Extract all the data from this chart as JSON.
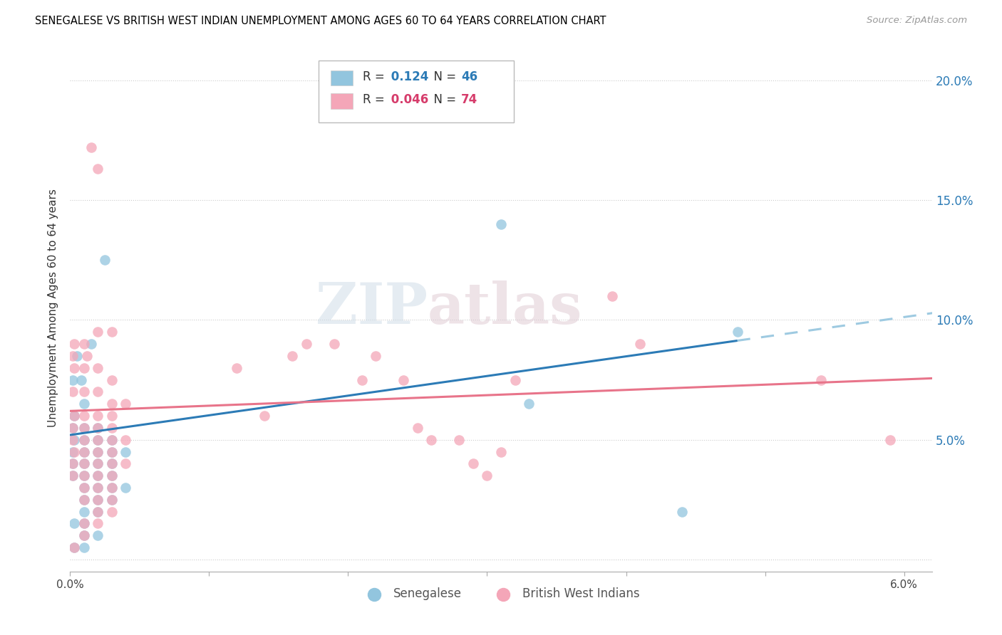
{
  "title": "SENEGALESE VS BRITISH WEST INDIAN UNEMPLOYMENT AMONG AGES 60 TO 64 YEARS CORRELATION CHART",
  "source": "Source: ZipAtlas.com",
  "ylabel": "Unemployment Among Ages 60 to 64 years",
  "legend1_label": "Senegalese",
  "legend2_label": "British West Indians",
  "R1": 0.124,
  "N1": 46,
  "R2": 0.046,
  "N2": 74,
  "color_blue": "#92c5de",
  "color_pink": "#f4a6b8",
  "xlim": [
    0.0,
    0.062
  ],
  "ylim": [
    -0.005,
    0.215
  ],
  "yticks": [
    0.0,
    0.05,
    0.1,
    0.15,
    0.2
  ],
  "ytick_labels": [
    "",
    "5.0%",
    "10.0%",
    "15.0%",
    "20.0%"
  ],
  "xticks": [
    0.0,
    0.01,
    0.02,
    0.03,
    0.04,
    0.05,
    0.06
  ],
  "xtick_labels": [
    "0.0%",
    "",
    "",
    "",
    "",
    "",
    "6.0%"
  ],
  "blue_points": [
    [
      0.0005,
      0.085
    ],
    [
      0.0015,
      0.09
    ],
    [
      0.0025,
      0.125
    ],
    [
      0.0002,
      0.075
    ],
    [
      0.0008,
      0.075
    ],
    [
      0.001,
      0.065
    ],
    [
      0.0003,
      0.06
    ],
    [
      0.0002,
      0.055
    ],
    [
      0.001,
      0.055
    ],
    [
      0.002,
      0.055
    ],
    [
      0.0003,
      0.05
    ],
    [
      0.001,
      0.05
    ],
    [
      0.002,
      0.05
    ],
    [
      0.003,
      0.05
    ],
    [
      0.0002,
      0.045
    ],
    [
      0.001,
      0.045
    ],
    [
      0.002,
      0.045
    ],
    [
      0.003,
      0.045
    ],
    [
      0.004,
      0.045
    ],
    [
      0.0002,
      0.04
    ],
    [
      0.001,
      0.04
    ],
    [
      0.002,
      0.04
    ],
    [
      0.003,
      0.04
    ],
    [
      0.0002,
      0.035
    ],
    [
      0.001,
      0.035
    ],
    [
      0.002,
      0.035
    ],
    [
      0.003,
      0.035
    ],
    [
      0.001,
      0.03
    ],
    [
      0.002,
      0.03
    ],
    [
      0.003,
      0.03
    ],
    [
      0.004,
      0.03
    ],
    [
      0.001,
      0.025
    ],
    [
      0.002,
      0.025
    ],
    [
      0.003,
      0.025
    ],
    [
      0.001,
      0.02
    ],
    [
      0.002,
      0.02
    ],
    [
      0.0003,
      0.015
    ],
    [
      0.001,
      0.015
    ],
    [
      0.001,
      0.01
    ],
    [
      0.002,
      0.01
    ],
    [
      0.0003,
      0.005
    ],
    [
      0.001,
      0.005
    ],
    [
      0.031,
      0.14
    ],
    [
      0.033,
      0.065
    ],
    [
      0.044,
      0.02
    ],
    [
      0.048,
      0.095
    ]
  ],
  "pink_points": [
    [
      0.0015,
      0.172
    ],
    [
      0.002,
      0.163
    ],
    [
      0.0003,
      0.09
    ],
    [
      0.001,
      0.09
    ],
    [
      0.0002,
      0.085
    ],
    [
      0.0012,
      0.085
    ],
    [
      0.002,
      0.095
    ],
    [
      0.003,
      0.095
    ],
    [
      0.0003,
      0.08
    ],
    [
      0.001,
      0.08
    ],
    [
      0.002,
      0.08
    ],
    [
      0.003,
      0.075
    ],
    [
      0.0002,
      0.07
    ],
    [
      0.001,
      0.07
    ],
    [
      0.002,
      0.07
    ],
    [
      0.003,
      0.065
    ],
    [
      0.004,
      0.065
    ],
    [
      0.0003,
      0.06
    ],
    [
      0.001,
      0.06
    ],
    [
      0.002,
      0.06
    ],
    [
      0.003,
      0.06
    ],
    [
      0.0002,
      0.055
    ],
    [
      0.001,
      0.055
    ],
    [
      0.002,
      0.055
    ],
    [
      0.003,
      0.055
    ],
    [
      0.0002,
      0.05
    ],
    [
      0.001,
      0.05
    ],
    [
      0.002,
      0.05
    ],
    [
      0.003,
      0.05
    ],
    [
      0.004,
      0.05
    ],
    [
      0.0003,
      0.045
    ],
    [
      0.001,
      0.045
    ],
    [
      0.002,
      0.045
    ],
    [
      0.003,
      0.045
    ],
    [
      0.0002,
      0.04
    ],
    [
      0.001,
      0.04
    ],
    [
      0.002,
      0.04
    ],
    [
      0.003,
      0.04
    ],
    [
      0.004,
      0.04
    ],
    [
      0.0002,
      0.035
    ],
    [
      0.001,
      0.035
    ],
    [
      0.002,
      0.035
    ],
    [
      0.003,
      0.035
    ],
    [
      0.001,
      0.03
    ],
    [
      0.002,
      0.03
    ],
    [
      0.003,
      0.03
    ],
    [
      0.001,
      0.025
    ],
    [
      0.002,
      0.025
    ],
    [
      0.003,
      0.025
    ],
    [
      0.002,
      0.02
    ],
    [
      0.003,
      0.02
    ],
    [
      0.001,
      0.015
    ],
    [
      0.002,
      0.015
    ],
    [
      0.001,
      0.01
    ],
    [
      0.0003,
      0.005
    ],
    [
      0.012,
      0.08
    ],
    [
      0.014,
      0.06
    ],
    [
      0.016,
      0.085
    ],
    [
      0.017,
      0.09
    ],
    [
      0.019,
      0.09
    ],
    [
      0.021,
      0.075
    ],
    [
      0.022,
      0.085
    ],
    [
      0.024,
      0.075
    ],
    [
      0.025,
      0.055
    ],
    [
      0.026,
      0.05
    ],
    [
      0.028,
      0.05
    ],
    [
      0.029,
      0.04
    ],
    [
      0.03,
      0.035
    ],
    [
      0.031,
      0.045
    ],
    [
      0.032,
      0.075
    ],
    [
      0.039,
      0.11
    ],
    [
      0.041,
      0.09
    ],
    [
      0.054,
      0.075
    ],
    [
      0.059,
      0.05
    ]
  ],
  "watermark_zip": "ZIP",
  "watermark_atlas": "atlas",
  "trend_blue_intercept": 0.052,
  "trend_blue_slope": 0.82,
  "trend_pink_intercept": 0.062,
  "trend_pink_slope": 0.22
}
